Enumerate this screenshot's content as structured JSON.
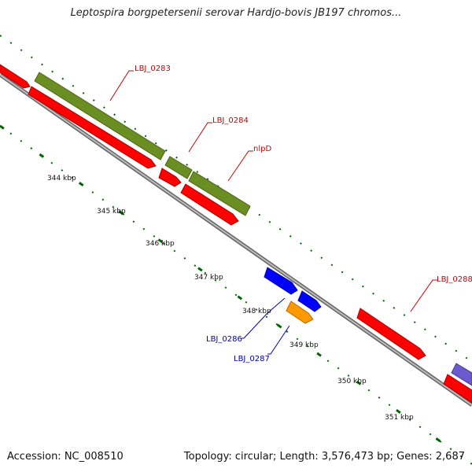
{
  "title": "Leptospira borgpetersenii serovar Hardjo-bovis JB197 chromos...",
  "accession": "Accession: NC_008510",
  "summary": "Topology: circular; Length: 3,576,473 bp; Genes: 2,687",
  "ticks": [
    "344 kbp",
    "345 kbp",
    "346 kbp",
    "347 kbp",
    "348 kbp",
    "349 kbp",
    "350 kbp",
    "351 kbp"
  ],
  "genes": [
    {
      "id": "LBJ_0283",
      "color": "#cc0000"
    },
    {
      "id": "LBJ_0284",
      "color": "#cc0000"
    },
    {
      "id": "nlpD",
      "color": "#cc0000"
    },
    {
      "id": "LBJ_0286",
      "color": "#0000aa"
    },
    {
      "id": "LBJ_0287",
      "color": "#0000aa"
    },
    {
      "id": "LBJ_0288",
      "color": "#cc0000"
    }
  ],
  "colors": {
    "forward_cds": "#ff0000",
    "reverse_cds": "#ff0000",
    "green_feature": "#6b8e23",
    "blue_feature": "#0000ff",
    "orange_feature": "#ff9900",
    "purple_feature": "#6a5acd",
    "backbone": "#888888",
    "tick": "#006600"
  }
}
